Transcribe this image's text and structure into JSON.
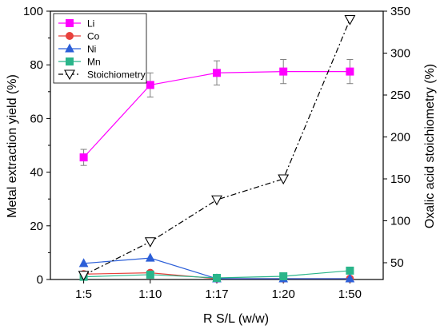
{
  "chart_data": {
    "type": "line",
    "title": "",
    "categories": [
      "1:5",
      "1:10",
      "1:17",
      "1:20",
      "1:50"
    ],
    "xlabel": "R S/L (w/w)",
    "ylabel_left": "Metal extraction yield (%)",
    "ylabel_right": "Oxalic acid stoichiometry (%)",
    "ylim_left": [
      0,
      100
    ],
    "yticks_left": [
      "0",
      "20",
      "40",
      "60",
      "80",
      "100"
    ],
    "ylim_right": [
      30,
      350
    ],
    "yticks_right": [
      "50",
      "100",
      "150",
      "200",
      "250",
      "300",
      "350"
    ],
    "grid": false,
    "legend_position": "top-left",
    "series": [
      {
        "name": "Li",
        "axis": "left",
        "marker": "square",
        "line": "solid",
        "color": "#ff00ff",
        "values": [
          45.5,
          72.5,
          77,
          77.5,
          77.5
        ],
        "errors": [
          3,
          4.5,
          4.5,
          4.5,
          4.5
        ]
      },
      {
        "name": "Co",
        "axis": "left",
        "marker": "circle",
        "line": "solid",
        "color": "#e8413c",
        "values": [
          2,
          2.5,
          0.3,
          0.3,
          0.3
        ]
      },
      {
        "name": "Ni",
        "axis": "left",
        "marker": "triangle-up",
        "line": "solid",
        "color": "#2c5fd8",
        "values": [
          6,
          8,
          0.3,
          0.3,
          0.3
        ]
      },
      {
        "name": "Mn",
        "axis": "left",
        "marker": "square",
        "line": "solid",
        "color": "#2ab58a",
        "values": [
          1,
          1.8,
          0.6,
          1.2,
          3.3
        ]
      },
      {
        "name": "Stoichiometry",
        "axis": "right",
        "marker": "triangle-down-open",
        "line": "dashdot",
        "color": "#000000",
        "values": [
          35,
          75,
          125,
          150,
          340
        ]
      }
    ]
  }
}
